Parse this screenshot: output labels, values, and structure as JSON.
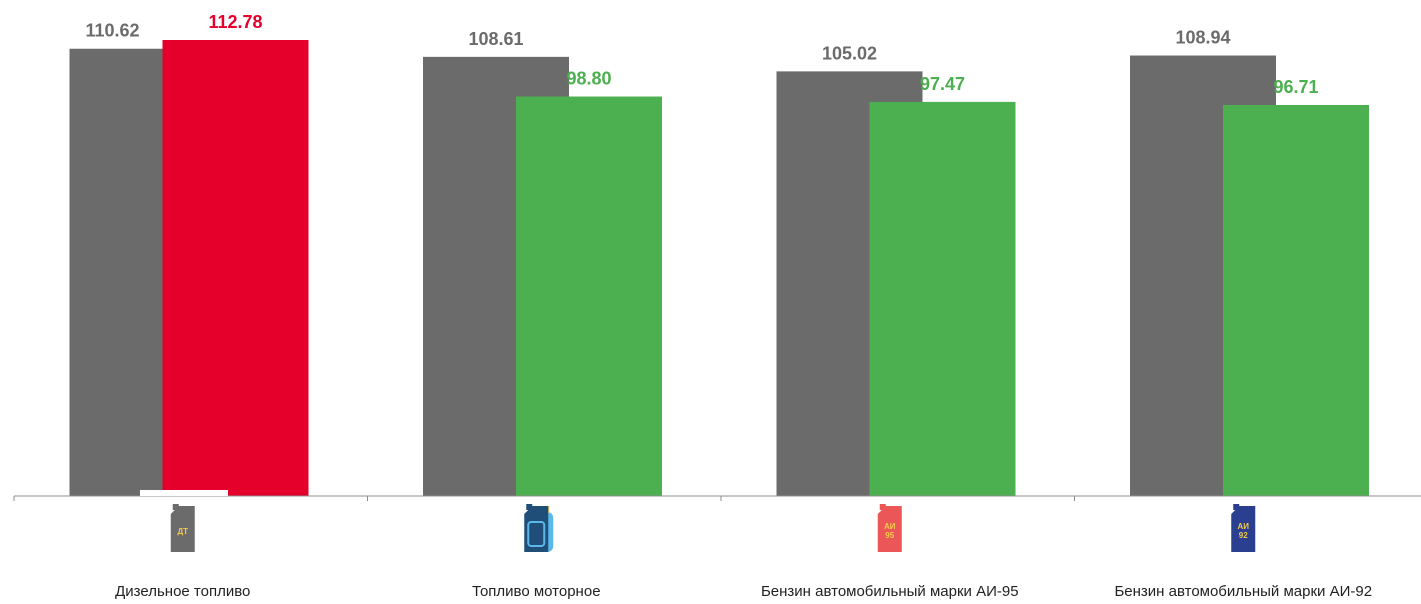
{
  "chart_data": {
    "type": "bar",
    "categories": [
      "Дизельное топливо",
      "Топливо моторное",
      "Бензин автомобильный марки АИ-95",
      "Бензин автомобильный марки АИ-92"
    ],
    "series": [
      {
        "values": [
          110.62,
          108.61,
          105.02,
          108.94
        ],
        "color": "#6b6b6b",
        "label_color": "#6b6b6b"
      },
      {
        "values": [
          112.78,
          98.8,
          97.47,
          96.71
        ],
        "colors": [
          "#e4002b",
          "#4caf50",
          "#4caf50",
          "#4caf50"
        ],
        "label_colors": [
          "#e4002b",
          "#4caf50",
          "#4caf50",
          "#4caf50"
        ]
      }
    ],
    "value_labels": [
      [
        "110.62",
        "108.61",
        "105.02",
        "108.94"
      ],
      [
        "112.78",
        "98.80",
        "97.47",
        "96.71"
      ]
    ],
    "ylim": [
      0,
      125
    ],
    "grid": false,
    "legend": "none",
    "category_icons": [
      {
        "name": "diesel-canister-icon",
        "text": [
          "ДТ"
        ],
        "color": "#6b6b6b",
        "text_color": "#f2c94c"
      },
      {
        "name": "motor-fuel-canister-icon",
        "text": [],
        "color": "#1f4e79",
        "text_color": "#ffffff"
      },
      {
        "name": "ai95-canister-icon",
        "text": [
          "АИ",
          "95"
        ],
        "color": "#eb5757",
        "text_color": "#f2c94c"
      },
      {
        "name": "ai92-canister-icon",
        "text": [
          "АИ",
          "92"
        ],
        "color": "#2a3f8f",
        "text_color": "#f2c94c"
      }
    ]
  }
}
